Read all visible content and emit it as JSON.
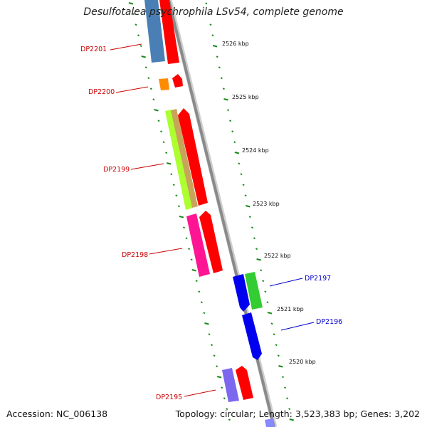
{
  "title": "Desulfotalea psychrophila LSv54, complete genome",
  "accession_label": "Accession: NC_006138",
  "summary_label": "Topology: circular; Length: 3,523,383 bp; Genes: 3,202",
  "colors": {
    "backbone": "#888888",
    "tick": "#1a8a1a",
    "label_reverse": "#cc0000",
    "label_forward": "#0000cc",
    "rna_arrow": "#ff0000"
  },
  "scale_ticks": [
    "2526 kbp",
    "2525 kbp",
    "2524 kbp",
    "2523 kbp",
    "2522 kbp",
    "2521 kbp",
    "2520 kbp"
  ],
  "genes": [
    {
      "id": "DP2201",
      "strand": "reverse"
    },
    {
      "id": "DP2200",
      "strand": "reverse"
    },
    {
      "id": "DP2199",
      "strand": "reverse"
    },
    {
      "id": "DP2198",
      "strand": "reverse"
    },
    {
      "id": "DP2197",
      "strand": "forward"
    },
    {
      "id": "DP2196",
      "strand": "forward"
    },
    {
      "id": "DP2195",
      "strand": "reverse"
    }
  ]
}
